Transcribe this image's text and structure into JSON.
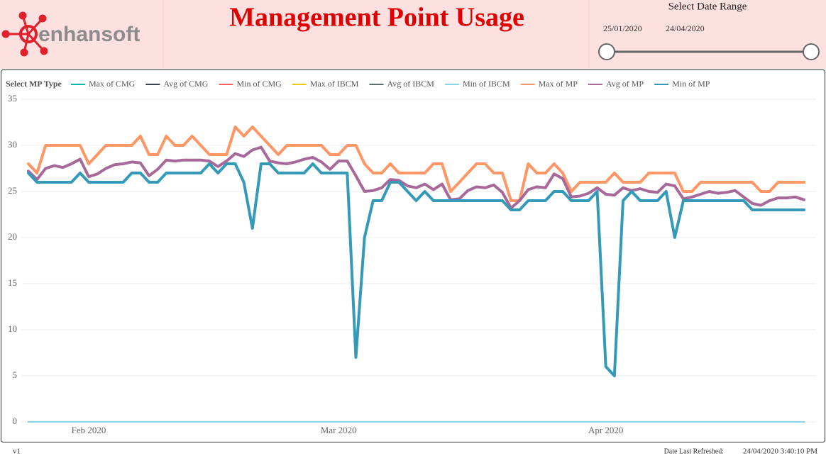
{
  "header": {
    "logo": "enhansoft",
    "title": "Management Point Usage"
  },
  "date_range": {
    "label": "Select Date Range",
    "start": "25/01/2020",
    "end": "24/04/2020"
  },
  "chart_data": {
    "type": "line",
    "legend_title": "Select MP Type",
    "categories": [
      null,
      null,
      null,
      null,
      null,
      null,
      null,
      "Feb 2020",
      null,
      null,
      null,
      null,
      null,
      null,
      null,
      null,
      null,
      null,
      null,
      null,
      null,
      null,
      null,
      null,
      null,
      null,
      null,
      null,
      null,
      null,
      null,
      null,
      null,
      null,
      null,
      null,
      "Mar 2020",
      null,
      null,
      null,
      null,
      null,
      null,
      null,
      null,
      null,
      null,
      null,
      null,
      null,
      null,
      null,
      null,
      null,
      null,
      null,
      null,
      null,
      null,
      null,
      null,
      null,
      null,
      null,
      null,
      null,
      null,
      "Apr 2020",
      null,
      null,
      null,
      null,
      null,
      null,
      null,
      null,
      null,
      null,
      null,
      null,
      null,
      null,
      null,
      null,
      null,
      null,
      null,
      null,
      null,
      null,
      null
    ],
    "ylim": [
      0,
      35
    ],
    "yticks": [
      0,
      5,
      10,
      15,
      20,
      25,
      30,
      35
    ],
    "grid": true,
    "series": [
      {
        "name": "Max of CMG",
        "color": "#01B8AA",
        "values": [
          0,
          0,
          0,
          0,
          0,
          0,
          0,
          0,
          0,
          0,
          0,
          0,
          0,
          0,
          0,
          0,
          0,
          0,
          0,
          0,
          0,
          0,
          0,
          0,
          0,
          0,
          0,
          0,
          0,
          0,
          0,
          0,
          0,
          0,
          0,
          0,
          0,
          0,
          0,
          0,
          0,
          0,
          0,
          0,
          0,
          0,
          0,
          0,
          0,
          0,
          0,
          0,
          0,
          0,
          0,
          0,
          0,
          0,
          0,
          0,
          0,
          0,
          0,
          0,
          0,
          0,
          0,
          0,
          0,
          0,
          0,
          0,
          0,
          0,
          0,
          0,
          0,
          0,
          0,
          0,
          0,
          0,
          0,
          0,
          0,
          0,
          0,
          0,
          0,
          0,
          0
        ]
      },
      {
        "name": "Avg of CMG",
        "color": "#374649",
        "values": [
          0,
          0,
          0,
          0,
          0,
          0,
          0,
          0,
          0,
          0,
          0,
          0,
          0,
          0,
          0,
          0,
          0,
          0,
          0,
          0,
          0,
          0,
          0,
          0,
          0,
          0,
          0,
          0,
          0,
          0,
          0,
          0,
          0,
          0,
          0,
          0,
          0,
          0,
          0,
          0,
          0,
          0,
          0,
          0,
          0,
          0,
          0,
          0,
          0,
          0,
          0,
          0,
          0,
          0,
          0,
          0,
          0,
          0,
          0,
          0,
          0,
          0,
          0,
          0,
          0,
          0,
          0,
          0,
          0,
          0,
          0,
          0,
          0,
          0,
          0,
          0,
          0,
          0,
          0,
          0,
          0,
          0,
          0,
          0,
          0,
          0,
          0,
          0,
          0,
          0,
          0
        ]
      },
      {
        "name": "Min of CMG",
        "color": "#FD625E",
        "values": [
          0,
          0,
          0,
          0,
          0,
          0,
          0,
          0,
          0,
          0,
          0,
          0,
          0,
          0,
          0,
          0,
          0,
          0,
          0,
          0,
          0,
          0,
          0,
          0,
          0,
          0,
          0,
          0,
          0,
          0,
          0,
          0,
          0,
          0,
          0,
          0,
          0,
          0,
          0,
          0,
          0,
          0,
          0,
          0,
          0,
          0,
          0,
          0,
          0,
          0,
          0,
          0,
          0,
          0,
          0,
          0,
          0,
          0,
          0,
          0,
          0,
          0,
          0,
          0,
          0,
          0,
          0,
          0,
          0,
          0,
          0,
          0,
          0,
          0,
          0,
          0,
          0,
          0,
          0,
          0,
          0,
          0,
          0,
          0,
          0,
          0,
          0,
          0,
          0,
          0,
          0
        ]
      },
      {
        "name": "Max of IBCM",
        "color": "#F2C80F",
        "values": [
          0,
          0,
          0,
          0,
          0,
          0,
          0,
          0,
          0,
          0,
          0,
          0,
          0,
          0,
          0,
          0,
          0,
          0,
          0,
          0,
          0,
          0,
          0,
          0,
          0,
          0,
          0,
          0,
          0,
          0,
          0,
          0,
          0,
          0,
          0,
          0,
          0,
          0,
          0,
          0,
          0,
          0,
          0,
          0,
          0,
          0,
          0,
          0,
          0,
          0,
          0,
          0,
          0,
          0,
          0,
          0,
          0,
          0,
          0,
          0,
          0,
          0,
          0,
          0,
          0,
          0,
          0,
          0,
          0,
          0,
          0,
          0,
          0,
          0,
          0,
          0,
          0,
          0,
          0,
          0,
          0,
          0,
          0,
          0,
          0,
          0,
          0,
          0,
          0,
          0,
          0
        ]
      },
      {
        "name": "Avg of IBCM",
        "color": "#5F6B6D",
        "values": [
          0,
          0,
          0,
          0,
          0,
          0,
          0,
          0,
          0,
          0,
          0,
          0,
          0,
          0,
          0,
          0,
          0,
          0,
          0,
          0,
          0,
          0,
          0,
          0,
          0,
          0,
          0,
          0,
          0,
          0,
          0,
          0,
          0,
          0,
          0,
          0,
          0,
          0,
          0,
          0,
          0,
          0,
          0,
          0,
          0,
          0,
          0,
          0,
          0,
          0,
          0,
          0,
          0,
          0,
          0,
          0,
          0,
          0,
          0,
          0,
          0,
          0,
          0,
          0,
          0,
          0,
          0,
          0,
          0,
          0,
          0,
          0,
          0,
          0,
          0,
          0,
          0,
          0,
          0,
          0,
          0,
          0,
          0,
          0,
          0,
          0,
          0,
          0,
          0,
          0,
          0
        ]
      },
      {
        "name": "Min of IBCM",
        "color": "#8AD4EB",
        "values": [
          0,
          0,
          0,
          0,
          0,
          0,
          0,
          0,
          0,
          0,
          0,
          0,
          0,
          0,
          0,
          0,
          0,
          0,
          0,
          0,
          0,
          0,
          0,
          0,
          0,
          0,
          0,
          0,
          0,
          0,
          0,
          0,
          0,
          0,
          0,
          0,
          0,
          0,
          0,
          0,
          0,
          0,
          0,
          0,
          0,
          0,
          0,
          0,
          0,
          0,
          0,
          0,
          0,
          0,
          0,
          0,
          0,
          0,
          0,
          0,
          0,
          0,
          0,
          0,
          0,
          0,
          0,
          0,
          0,
          0,
          0,
          0,
          0,
          0,
          0,
          0,
          0,
          0,
          0,
          0,
          0,
          0,
          0,
          0,
          0,
          0,
          0,
          0,
          0,
          0,
          0
        ]
      },
      {
        "name": "Max of MP",
        "color": "#FE9666",
        "values": [
          28,
          27,
          30,
          30,
          30,
          30,
          30,
          28,
          29,
          30,
          30,
          30,
          30,
          31,
          29,
          29,
          31,
          30,
          30,
          31,
          30,
          29,
          29,
          29,
          32,
          31,
          32,
          31,
          30,
          29,
          30,
          30,
          30,
          30,
          30,
          29,
          29,
          30,
          30,
          28,
          27,
          27,
          28,
          27,
          27,
          27,
          27,
          28,
          28,
          25,
          26,
          27,
          28,
          28,
          27,
          27,
          24,
          24,
          28,
          27,
          27,
          28,
          27,
          25,
          26,
          26,
          26,
          26,
          27,
          26,
          26,
          26,
          27,
          27,
          27,
          27,
          25,
          25,
          26,
          26,
          26,
          26,
          26,
          26,
          26,
          25,
          25,
          26,
          26,
          26,
          26
        ]
      },
      {
        "name": "Avg of MP",
        "color": "#A66999",
        "values": [
          27.2,
          26.3,
          27.5,
          27.8,
          27.6,
          28,
          28.5,
          26.6,
          26.9,
          27.5,
          27.9,
          28,
          28.2,
          28.1,
          26.7,
          27.4,
          28.4,
          28.3,
          28.4,
          28.4,
          28.4,
          28.3,
          27.7,
          28.3,
          29.1,
          28.8,
          29.5,
          29.8,
          28.3,
          28.1,
          28,
          28.2,
          28.5,
          28.7,
          28.2,
          27.4,
          28.3,
          28.3,
          26.7,
          25,
          25.1,
          25.4,
          26.3,
          26.2,
          25.6,
          25.4,
          25.8,
          25.2,
          25.8,
          24.1,
          24.2,
          25.1,
          25.5,
          25.4,
          25.7,
          24.9,
          23.2,
          24,
          25.2,
          25.5,
          25.4,
          26.9,
          26.4,
          24.4,
          24.5,
          24.8,
          25.4,
          24.7,
          24.6,
          25.4,
          25.1,
          25.3,
          25,
          24.9,
          25.8,
          25.6,
          24.2,
          24.4,
          24.7,
          25,
          24.8,
          24.9,
          25.1,
          24.4,
          23.7,
          23.5,
          24,
          24.3,
          24.3,
          24.4,
          24.1
        ]
      },
      {
        "name": "Min of MP",
        "color": "#3599B8",
        "values": [
          27,
          26,
          26,
          26,
          26,
          26,
          27,
          26,
          26,
          26,
          26,
          26,
          27,
          27,
          26,
          26,
          27,
          27,
          27,
          27,
          27,
          28,
          27,
          28,
          28,
          26,
          21,
          28,
          28,
          27,
          27,
          27,
          27,
          28,
          27,
          27,
          27,
          27,
          7,
          20,
          24,
          24,
          26,
          26,
          25,
          24,
          25,
          24,
          24,
          24,
          24,
          24,
          24,
          24,
          24,
          24,
          23,
          23,
          24,
          24,
          24,
          25,
          25,
          24,
          24,
          24,
          25,
          6,
          5,
          24,
          25,
          24,
          24,
          24,
          25,
          20,
          24,
          24,
          24,
          24,
          24,
          24,
          24,
          24,
          23,
          23,
          23,
          23,
          23,
          23,
          23
        ]
      }
    ]
  },
  "footer": {
    "version": "v1",
    "refreshed_label": "Date Last Refreshed:",
    "refreshed": "24/04/2020 3:40:10 PM"
  }
}
